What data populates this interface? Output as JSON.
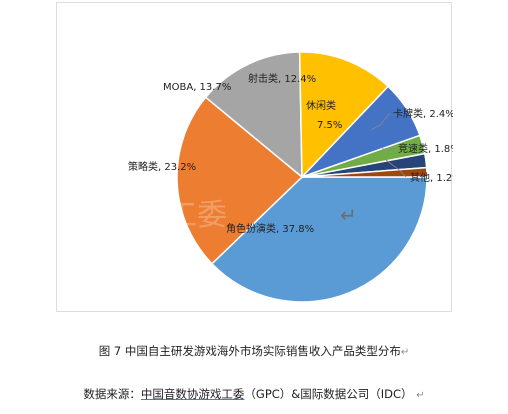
{
  "chart_data": {
    "type": "pie",
    "title": "",
    "slices": [
      {
        "label": "角色扮演类",
        "value": 37.8,
        "display": "角色扮演类, 37.8%",
        "color": "#5B9BD5"
      },
      {
        "label": "策略类",
        "value": 23.2,
        "display": "策略类, 23.2%",
        "color": "#ED7D31"
      },
      {
        "label": "MOBA",
        "value": 13.7,
        "display": "MOBA, 13.7%",
        "color": "#A5A5A5"
      },
      {
        "label": "射击类",
        "value": 12.4,
        "display": "射击类, 12.4%",
        "color": "#FFC000"
      },
      {
        "label": "休闲类",
        "value": 7.5,
        "display_lines": [
          "休闲类",
          "7.5%"
        ],
        "color": "#4472C4"
      },
      {
        "label": "卡牌类",
        "value": 2.4,
        "display": "卡牌类, 2.4%",
        "color": "#70AD47"
      },
      {
        "label": "竞速类",
        "value": 1.8,
        "display": "竞速类, 1.8%",
        "color": "#264478"
      },
      {
        "label": "其他",
        "value": 1.2,
        "display": "其他, 1.2%",
        "color": "#9E480E"
      }
    ],
    "watermark": "游戏工委"
  },
  "caption": "图 7  中国自主研发游戏海外市场实际销售收入产品类型分布",
  "source": {
    "prefix": "数据来源：",
    "underlined": "中国音数协游戏工委",
    "rest": "（GPC）&国际数据公司（IDC）"
  },
  "return_mark": "↵"
}
